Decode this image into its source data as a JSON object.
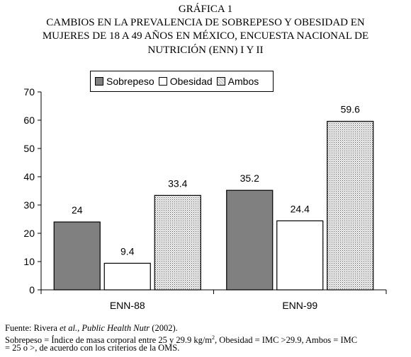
{
  "figure": {
    "label": "GRÁFICA 1",
    "title_lines": [
      "CAMBIOS EN LA PREVALENCIA DE SOBREPESO Y OBESIDAD EN",
      "MUJERES DE 18 A 49 AÑOS EN MÉXICO, ENCUESTA NACIONAL DE",
      "NUTRICIÓN (ENN) I Y II"
    ],
    "source_prefix": "Fuente: Rivera ",
    "source_etal": "et al.",
    "source_comma": ", ",
    "source_journal": "Public Health Nutr",
    "source_year": " (2002).",
    "note_line1_a": "Sobrepeso =  Índice de masa corporal entre 25 y 29.9 kg/m",
    "note_line1_sup": "2",
    "note_line1_b": ", Obesidad = IMC >29.9, Ambos = IMC",
    "note_line2": "= 25 o >, de acuerdo con los criterios de la OMS."
  },
  "chart_data": {
    "type": "bar",
    "categories": [
      "ENN-88",
      "ENN-99"
    ],
    "series": [
      {
        "name": "Sobrepeso",
        "values": [
          24,
          35.2
        ],
        "color": "#808080",
        "pattern": "solid"
      },
      {
        "name": "Obesidad",
        "values": [
          9.4,
          24.4
        ],
        "color": "#ffffff",
        "pattern": "solid"
      },
      {
        "name": "Ambos",
        "values": [
          33.4,
          59.6
        ],
        "color": "#d9d9d9",
        "pattern": "dotted"
      }
    ],
    "ylim": [
      0,
      70
    ],
    "yticks": [
      "0",
      "10",
      "20",
      "30",
      "40",
      "50",
      "60",
      "70"
    ],
    "data_labels": [
      [
        "24",
        "35.2"
      ],
      [
        "9.4",
        "24.4"
      ],
      [
        "33.4",
        "59.6"
      ]
    ],
    "legend_position": "top",
    "grid": false
  }
}
